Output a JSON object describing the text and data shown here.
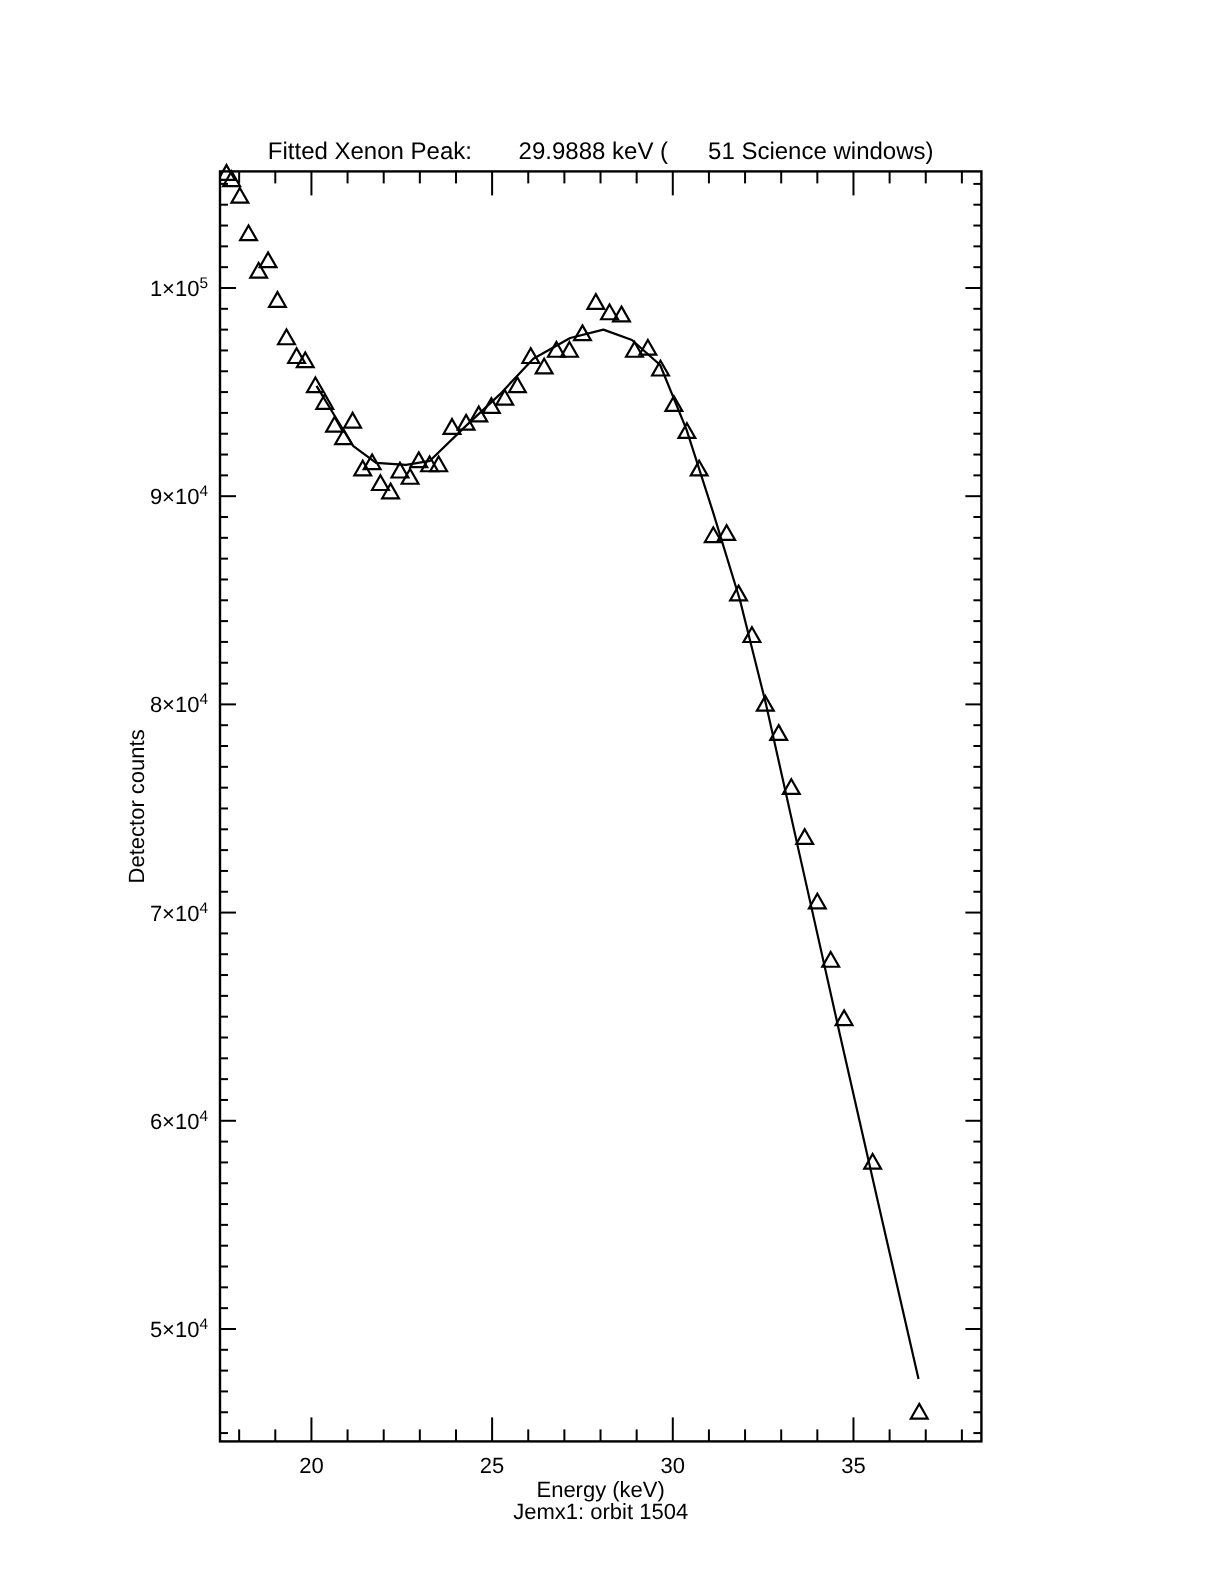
{
  "chart_data": {
    "type": "scatter",
    "title": "Fitted Xenon Peak:       29.9888 keV (      51 Science windows)",
    "xlabel": "Energy (keV)",
    "ylabel": "Detector counts",
    "annotations": [
      "Jemx1: orbit 1504"
    ],
    "xlim": [
      17.47,
      38.54
    ],
    "ylim": [
      44600,
      105600
    ],
    "xticks": [
      {
        "value": 18,
        "label": null
      },
      {
        "value": 19,
        "label": null
      },
      20,
      {
        "value": 21,
        "label": null
      },
      {
        "value": 22,
        "label": null
      },
      {
        "value": 23,
        "label": null
      },
      {
        "value": 24,
        "label": null
      },
      25,
      {
        "value": 26,
        "label": null
      },
      {
        "value": 27,
        "label": null
      },
      {
        "value": 28,
        "label": null
      },
      {
        "value": 29,
        "label": null
      },
      30,
      {
        "value": 31,
        "label": null
      },
      {
        "value": 32,
        "label": null
      },
      {
        "value": 33,
        "label": null
      },
      {
        "value": 34,
        "label": null
      },
      35,
      {
        "value": 36,
        "label": null
      },
      {
        "value": 37,
        "label": null
      },
      {
        "value": 38,
        "label": null
      }
    ],
    "yticks": [
      {
        "value": 45000,
        "label": null
      },
      {
        "value": 46000,
        "label": null
      },
      {
        "value": 47000,
        "label": null
      },
      {
        "value": 48000,
        "label": null
      },
      {
        "value": 49000,
        "label": null
      },
      {
        "value": 50000,
        "label": "5×10$^{4}$"
      },
      {
        "value": 51000,
        "label": null
      },
      {
        "value": 52000,
        "label": null
      },
      {
        "value": 53000,
        "label": null
      },
      {
        "value": 54000,
        "label": null
      },
      {
        "value": 55000,
        "label": null
      },
      {
        "value": 56000,
        "label": null
      },
      {
        "value": 57000,
        "label": null
      },
      {
        "value": 58000,
        "label": null
      },
      {
        "value": 59000,
        "label": null
      },
      {
        "value": 60000,
        "label": "6×10$^{4}$"
      },
      {
        "value": 61000,
        "label": null
      },
      {
        "value": 62000,
        "label": null
      },
      {
        "value": 63000,
        "label": null
      },
      {
        "value": 64000,
        "label": null
      },
      {
        "value": 65000,
        "label": null
      },
      {
        "value": 66000,
        "label": null
      },
      {
        "value": 67000,
        "label": null
      },
      {
        "value": 68000,
        "label": null
      },
      {
        "value": 69000,
        "label": null
      },
      {
        "value": 70000,
        "label": "7×10$^{4}$"
      },
      {
        "value": 71000,
        "label": null
      },
      {
        "value": 72000,
        "label": null
      },
      {
        "value": 73000,
        "label": null
      },
      {
        "value": 74000,
        "label": null
      },
      {
        "value": 75000,
        "label": null
      },
      {
        "value": 76000,
        "label": null
      },
      {
        "value": 77000,
        "label": null
      },
      {
        "value": 78000,
        "label": null
      },
      {
        "value": 79000,
        "label": null
      },
      {
        "value": 80000,
        "label": "8×10$^{4}$"
      },
      {
        "value": 81000,
        "label": null
      },
      {
        "value": 82000,
        "label": null
      },
      {
        "value": 83000,
        "label": null
      },
      {
        "value": 84000,
        "label": null
      },
      {
        "value": 85000,
        "label": null
      },
      {
        "value": 86000,
        "label": null
      },
      {
        "value": 87000,
        "label": null
      },
      {
        "value": 88000,
        "label": null
      },
      {
        "value": 89000,
        "label": null
      },
      {
        "value": 90000,
        "label": "9×10$^{4}$"
      },
      {
        "value": 91000,
        "label": null
      },
      {
        "value": 92000,
        "label": null
      },
      {
        "value": 93000,
        "label": null
      },
      {
        "value": 94000,
        "label": null
      },
      {
        "value": 95000,
        "label": null
      },
      {
        "value": 96000,
        "label": null
      },
      {
        "value": 97000,
        "label": null
      },
      {
        "value": 98000,
        "label": null
      },
      {
        "value": 99000,
        "label": null
      },
      {
        "value": 100000,
        "label": "1×10$^{5}$"
      },
      {
        "value": 101000,
        "label": null
      },
      {
        "value": 102000,
        "label": null
      },
      {
        "value": 103000,
        "label": null
      },
      {
        "value": 104000,
        "label": null
      },
      {
        "value": 105000,
        "label": null
      }
    ],
    "grid": false,
    "marker": "triangle",
    "series": [
      {
        "color": "#000000",
        "x": [
          17.65,
          17.79,
          18.02,
          18.26,
          18.54,
          18.8,
          19.06,
          19.31,
          19.59,
          19.83,
          20.11,
          20.37,
          20.64,
          20.89,
          21.14,
          21.42,
          21.68,
          21.91,
          22.19,
          22.45,
          22.73,
          22.97,
          23.27,
          23.52,
          23.89,
          24.28,
          24.63,
          24.98,
          25.35,
          25.7,
          26.07,
          26.44,
          26.78,
          27.14,
          27.5,
          27.87,
          28.25,
          28.58,
          28.94,
          29.31,
          29.66,
          30.03,
          30.39,
          30.73,
          31.12,
          31.49,
          31.82,
          32.19,
          32.56,
          32.93,
          33.28,
          33.65,
          34.0,
          34.37,
          34.74,
          35.53,
          36.82
        ],
        "values": [
          105500,
          105200,
          104400,
          102600,
          100800,
          101300,
          99400,
          97600,
          96700,
          96500,
          95300,
          94500,
          93400,
          92800,
          93600,
          91300,
          91600,
          90600,
          90200,
          91200,
          90900,
          91700,
          91500,
          91500,
          93300,
          93500,
          93900,
          94300,
          94700,
          95300,
          96700,
          96200,
          97000,
          97000,
          97800,
          99300,
          98800,
          98700,
          97000,
          97100,
          96100,
          94400,
          93100,
          91300,
          88100,
          88200,
          85300,
          83300,
          80000,
          78600,
          76000,
          73600,
          70500,
          67700,
          64900,
          58000,
          46000
        ]
      },
      {
        "type": "line",
        "color": "#000000",
        "marker": "none",
        "line_style": "solid",
        "x": [
          20.14,
          20.63,
          21.16,
          21.79,
          22.62,
          23.28,
          24.29,
          25.22,
          26.14,
          27.16,
          28.08,
          28.87,
          29.65,
          30.38,
          31.12,
          31.86,
          32.58,
          33.52,
          34.63,
          35.73,
          36.8
        ],
        "values": [
          95300,
          93900,
          92400,
          91600,
          91500,
          91700,
          93400,
          94900,
          96600,
          97600,
          98000,
          97500,
          96300,
          93200,
          89200,
          85000,
          80000,
          72700,
          64100,
          55700,
          47600
        ]
      }
    ]
  }
}
